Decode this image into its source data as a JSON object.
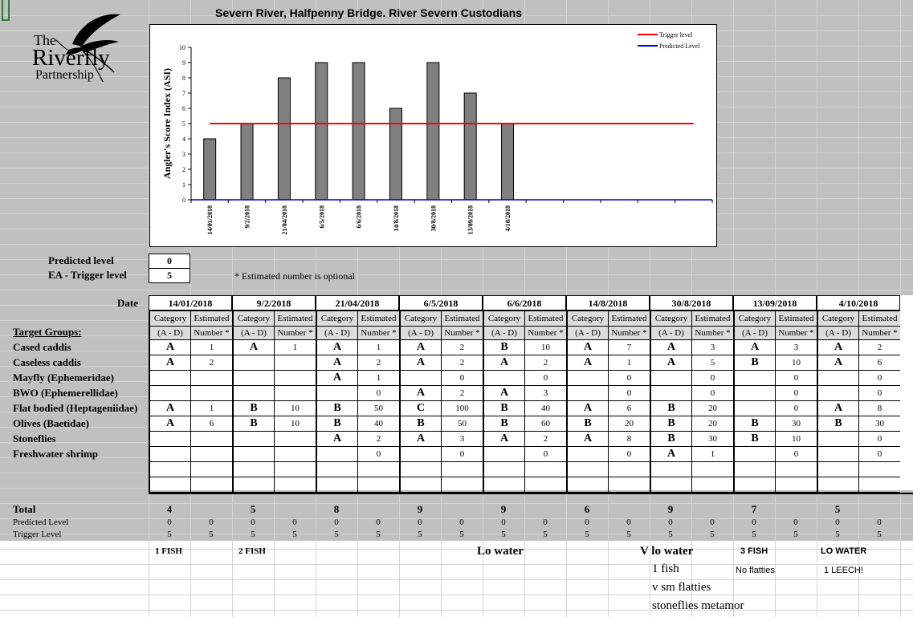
{
  "title": "Severn River, Halfpenny Bridge.  River Severn Custodians",
  "logo": {
    "line1": "The",
    "line2": "Riverfly",
    "line3": "Partnership"
  },
  "chart_data": {
    "type": "bar",
    "categories": [
      "14/01/2018",
      "9/2/2018",
      "21/04/2018",
      "6/5/2018",
      "6/6/2018",
      "14/8/2018",
      "30/8/2018",
      "13/09/2018",
      "4/10/2018"
    ],
    "values": [
      4,
      5,
      8,
      9,
      9,
      6,
      9,
      7,
      5
    ],
    "extra_slots": 5,
    "ylabel": "Angler's Score Index (ASI)",
    "ylim": [
      0,
      10
    ],
    "yticks": [
      "0",
      "1",
      "2",
      "3",
      "4",
      "5",
      "6",
      "7",
      "8",
      "9",
      "10"
    ],
    "series": [
      {
        "name": "Trigger level",
        "value": 5,
        "color": "#ff0000"
      },
      {
        "name": "Predicted Level",
        "value": 0,
        "color": "#0000cc"
      }
    ],
    "bar_color": "#808080",
    "legend_position": "top-right"
  },
  "levels": {
    "predicted_label": "Predicted level",
    "predicted_value": "0",
    "trigger_label": "EA - Trigger level",
    "trigger_value": "5",
    "note": "* Estimated number is optional"
  },
  "table": {
    "date_label": "Date",
    "target_groups_label": "Target Groups:",
    "subheader": {
      "cat1": "Category",
      "cat2": "(A - D)",
      "est1": "Estimated",
      "est2": "Number *"
    },
    "dates": [
      "14/01/2018",
      "9/2/2018",
      "21/04/2018",
      "6/5/2018",
      "6/6/2018",
      "14/8/2018",
      "30/8/2018",
      "13/09/2018",
      "4/10/2018"
    ],
    "rows": [
      {
        "name": "Cased caddis",
        "cells": [
          [
            "A",
            "1"
          ],
          [
            "A",
            "1"
          ],
          [
            "A",
            "1"
          ],
          [
            "A",
            "2"
          ],
          [
            "B",
            "10"
          ],
          [
            "A",
            "7"
          ],
          [
            "A",
            "3"
          ],
          [
            "A",
            "3"
          ],
          [
            "A",
            "2"
          ]
        ]
      },
      {
        "name": "Caseless caddis",
        "cells": [
          [
            "A",
            "2"
          ],
          [
            "",
            ""
          ],
          [
            "A",
            "2"
          ],
          [
            "A",
            "2"
          ],
          [
            "A",
            "2"
          ],
          [
            "A",
            "1"
          ],
          [
            "A",
            "5"
          ],
          [
            "B",
            "10"
          ],
          [
            "A",
            "6"
          ]
        ]
      },
      {
        "name": "Mayfly (Ephemeridae)",
        "cells": [
          [
            "",
            ""
          ],
          [
            "",
            ""
          ],
          [
            "A",
            "1"
          ],
          [
            "",
            "0"
          ],
          [
            "",
            "0"
          ],
          [
            "",
            "0"
          ],
          [
            "",
            "0"
          ],
          [
            "",
            "0"
          ],
          [
            "",
            "0"
          ]
        ]
      },
      {
        "name": "BWO (Ephemerellidae)",
        "cells": [
          [
            "",
            ""
          ],
          [
            "",
            ""
          ],
          [
            "",
            "0"
          ],
          [
            "A",
            "2"
          ],
          [
            "A",
            "3"
          ],
          [
            "",
            "0"
          ],
          [
            "",
            "0"
          ],
          [
            "",
            "0"
          ],
          [
            "",
            "0"
          ]
        ]
      },
      {
        "name": "Flat bodied (Heptageniidae)",
        "cells": [
          [
            "A",
            "1"
          ],
          [
            "B",
            "10"
          ],
          [
            "B",
            "50"
          ],
          [
            "C",
            "100"
          ],
          [
            "B",
            "40"
          ],
          [
            "A",
            "6"
          ],
          [
            "B",
            "20"
          ],
          [
            "",
            "0"
          ],
          [
            "A",
            "8"
          ]
        ]
      },
      {
        "name": "Olives (Baetidae)",
        "cells": [
          [
            "A",
            "6"
          ],
          [
            "B",
            "10"
          ],
          [
            "B",
            "40"
          ],
          [
            "B",
            "50"
          ],
          [
            "B",
            "60"
          ],
          [
            "B",
            "20"
          ],
          [
            "B",
            "20"
          ],
          [
            "B",
            "30"
          ],
          [
            "B",
            "30"
          ]
        ]
      },
      {
        "name": "Stoneflies",
        "cells": [
          [
            "",
            ""
          ],
          [
            "",
            ""
          ],
          [
            "A",
            "2"
          ],
          [
            "A",
            "3"
          ],
          [
            "A",
            "2"
          ],
          [
            "A",
            "8"
          ],
          [
            "B",
            "30"
          ],
          [
            "B",
            "10"
          ],
          [
            "",
            "0"
          ]
        ]
      },
      {
        "name": "Freshwater shrimp",
        "cells": [
          [
            "",
            ""
          ],
          [
            "",
            ""
          ],
          [
            "",
            "0"
          ],
          [
            "",
            "0"
          ],
          [
            "",
            "0"
          ],
          [
            "",
            "0"
          ],
          [
            "A",
            "1"
          ],
          [
            "",
            "0"
          ],
          [
            "",
            "0"
          ]
        ]
      }
    ],
    "total_label": "Total",
    "predicted_level_label": "Predicted Level",
    "trigger_level_label": "Trigger Level",
    "totals": [
      "4",
      "5",
      "8",
      "9",
      "9",
      "6",
      "9",
      "7",
      "5"
    ],
    "predicted": [
      "0",
      "0",
      "0",
      "0",
      "0",
      "0",
      "0",
      "0",
      "0"
    ],
    "trigger": [
      "5",
      "5",
      "5",
      "5",
      "5",
      "5",
      "5",
      "5",
      "5"
    ]
  },
  "notes": {
    "n1": "1 FISH",
    "n2": "2 FISH",
    "n3": "Lo water",
    "n4": "V lo water",
    "n5": "3 FISH",
    "n6": "LO WATER",
    "n7": "1 fish",
    "n8": "No flatties",
    "n9": "1 LEECH!",
    "n10": "v sm flatties",
    "n11": "stoneflies metamor"
  }
}
